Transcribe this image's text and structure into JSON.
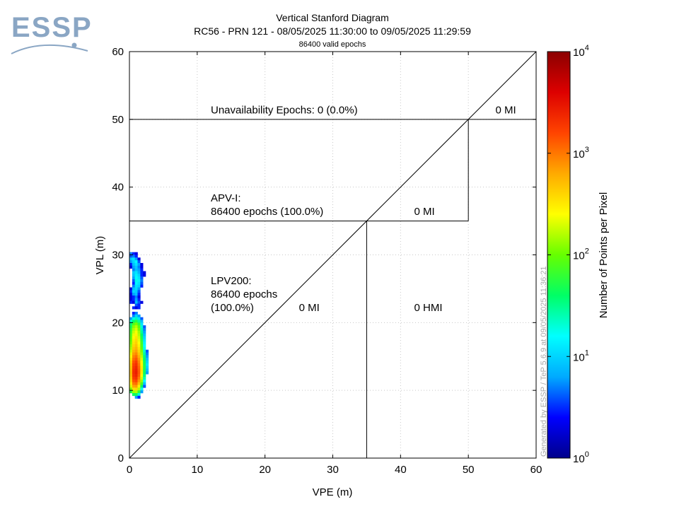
{
  "logo": {
    "text": "ESSP",
    "color": "#8aa6c4"
  },
  "header": {
    "title": "Vertical Stanford Diagram",
    "subtitle": "RC56 - PRN 121 - 08/05/2025 11:30:00 to 09/05/2025 11:29:59",
    "epochs_note": "86400 valid epochs"
  },
  "watermark": "Generated by ESSP / TeP 5.6.9 at 09/05/2025 11:36:21",
  "chart_data": {
    "type": "heatmap",
    "xlabel": "VPE (m)",
    "ylabel": "VPL (m)",
    "xlim": [
      0,
      60
    ],
    "ylim": [
      0,
      60
    ],
    "xticks": [
      0,
      10,
      20,
      30,
      40,
      50,
      60
    ],
    "yticks": [
      0,
      10,
      20,
      30,
      40,
      50,
      60
    ],
    "grid": true,
    "diagonal": true,
    "regions": [
      {
        "name": "LPV200",
        "limit": 35
      },
      {
        "name": "APV-I",
        "limit": 50
      }
    ],
    "annotations": [
      {
        "id": "unavail",
        "text": "Unavailability Epochs: 0 (0.0%)",
        "x": 12,
        "y": 51
      },
      {
        "id": "mi-top",
        "text": "0 MI",
        "x": 54,
        "y": 51
      },
      {
        "id": "apv-title",
        "text": "APV-I:",
        "x": 12,
        "y": 38
      },
      {
        "id": "apv-epochs",
        "text": "86400 epochs (100.0%)",
        "x": 12,
        "y": 36
      },
      {
        "id": "mi-apv",
        "text": "0 MI",
        "x": 42,
        "y": 36
      },
      {
        "id": "lpv-title",
        "text": "LPV200:",
        "x": 12,
        "y": 25.8
      },
      {
        "id": "lpv-epochs",
        "text": "86400 epochs",
        "x": 12,
        "y": 23.8
      },
      {
        "id": "lpv-pct",
        "text": "(100.0%)",
        "x": 12,
        "y": 21.8
      },
      {
        "id": "mi-lpv",
        "text": "0 MI",
        "x": 25,
        "y": 21.8
      },
      {
        "id": "hmi-lpv",
        "text": "0 HMI",
        "x": 42,
        "y": 21.8
      }
    ],
    "colorbar": {
      "label": "Number of Points per Pixel",
      "scale": "log",
      "ticks": [
        {
          "base": "10",
          "exp": "0"
        },
        {
          "base": "10",
          "exp": "1"
        },
        {
          "base": "10",
          "exp": "2"
        },
        {
          "base": "10",
          "exp": "3"
        },
        {
          "base": "10",
          "exp": "4"
        }
      ],
      "colors": [
        "#00008b",
        "#0000ff",
        "#00aaff",
        "#00ffff",
        "#00ff66",
        "#66ff00",
        "#ffff00",
        "#ffaa00",
        "#ff4400",
        "#dd0000",
        "#8b0000"
      ]
    },
    "pixel_size": [
      0.4,
      0.4
    ],
    "pixels": [
      [
        0,
        30,
        5
      ],
      [
        0.4,
        30,
        3
      ],
      [
        0.8,
        30,
        2
      ],
      [
        0,
        29.6,
        4
      ],
      [
        0.4,
        29.6,
        5
      ],
      [
        0.8,
        29.6,
        3
      ],
      [
        0,
        29.2,
        9
      ],
      [
        0.4,
        29.2,
        12
      ],
      [
        0.8,
        29.2,
        6
      ],
      [
        1.2,
        29.2,
        2
      ],
      [
        0,
        28.8,
        6
      ],
      [
        0.4,
        28.8,
        10
      ],
      [
        0.8,
        28.8,
        15
      ],
      [
        1.2,
        28.8,
        4
      ],
      [
        0,
        28.4,
        3
      ],
      [
        0.4,
        28.4,
        8
      ],
      [
        0.8,
        28.4,
        12
      ],
      [
        1.2,
        28.4,
        6
      ],
      [
        1.6,
        28.4,
        2
      ],
      [
        0,
        28,
        2
      ],
      [
        0.4,
        28,
        6
      ],
      [
        0.8,
        28,
        9
      ],
      [
        1.2,
        28,
        5
      ],
      [
        1.6,
        28,
        2
      ],
      [
        0.4,
        27.6,
        5
      ],
      [
        0.8,
        27.6,
        8
      ],
      [
        1.2,
        27.6,
        6
      ],
      [
        1.6,
        27.6,
        3
      ],
      [
        0.4,
        27.2,
        9
      ],
      [
        0.8,
        27.2,
        12
      ],
      [
        1.2,
        27.2,
        7
      ],
      [
        1.6,
        27.2,
        3
      ],
      [
        2.0,
        27.2,
        2
      ],
      [
        0.4,
        26.8,
        8
      ],
      [
        0.8,
        26.8,
        14
      ],
      [
        1.2,
        26.8,
        10
      ],
      [
        1.6,
        26.8,
        3
      ],
      [
        2.0,
        26.8,
        2
      ],
      [
        0.4,
        26.4,
        6
      ],
      [
        0.8,
        26.4,
        16
      ],
      [
        1.2,
        26.4,
        12
      ],
      [
        1.6,
        26.4,
        4
      ],
      [
        0.4,
        26,
        4
      ],
      [
        0.8,
        26,
        18
      ],
      [
        1.2,
        26,
        14
      ],
      [
        1.6,
        26,
        5
      ],
      [
        0.4,
        25.6,
        3
      ],
      [
        0.8,
        25.6,
        15
      ],
      [
        1.2,
        25.6,
        12
      ],
      [
        1.6,
        25.6,
        4
      ],
      [
        0.4,
        25.2,
        5
      ],
      [
        0.8,
        25.2,
        12
      ],
      [
        1.2,
        25.2,
        10
      ],
      [
        1.6,
        25.2,
        3
      ],
      [
        0,
        24.8,
        2
      ],
      [
        0.4,
        24.8,
        8
      ],
      [
        0.8,
        24.8,
        11
      ],
      [
        1.2,
        24.8,
        6
      ],
      [
        0,
        24.4,
        3
      ],
      [
        0.4,
        24.4,
        10
      ],
      [
        0.8,
        24.4,
        9
      ],
      [
        1.2,
        24.4,
        4
      ],
      [
        0,
        24,
        2
      ],
      [
        0.4,
        24,
        6
      ],
      [
        0.8,
        24,
        8
      ],
      [
        1.2,
        24,
        3
      ],
      [
        0,
        23.6,
        2
      ],
      [
        0.4,
        23.6,
        3
      ],
      [
        0.8,
        23.6,
        5
      ],
      [
        1.2,
        23.6,
        2
      ],
      [
        0,
        23.2,
        2
      ],
      [
        0.4,
        23.2,
        3
      ],
      [
        0.8,
        23.2,
        6
      ],
      [
        1.2,
        23.2,
        3
      ],
      [
        0,
        22.8,
        3
      ],
      [
        0.4,
        22.8,
        2
      ],
      [
        0.8,
        22.8,
        8
      ],
      [
        1.2,
        22.8,
        4
      ],
      [
        1.6,
        22.8,
        2
      ],
      [
        0.8,
        22.4,
        4
      ],
      [
        1.2,
        22.4,
        3
      ],
      [
        0.4,
        22,
        3
      ],
      [
        0.8,
        22,
        2
      ],
      [
        1.2,
        22,
        3
      ],
      [
        0.4,
        21.2,
        3
      ],
      [
        0.8,
        21.2,
        5
      ],
      [
        0.4,
        20.8,
        5
      ],
      [
        0.8,
        20.8,
        10
      ],
      [
        1.2,
        20.8,
        6
      ],
      [
        0,
        20.4,
        6
      ],
      [
        0.4,
        20.4,
        18
      ],
      [
        0.8,
        20.4,
        24
      ],
      [
        1.2,
        20.4,
        12
      ],
      [
        1.6,
        20.4,
        4
      ],
      [
        0,
        20,
        20
      ],
      [
        0.4,
        20,
        40
      ],
      [
        0.8,
        20,
        55
      ],
      [
        1.2,
        20,
        30
      ],
      [
        1.6,
        20,
        8
      ],
      [
        0,
        19.6,
        35
      ],
      [
        0.4,
        19.6,
        80
      ],
      [
        0.8,
        19.6,
        110
      ],
      [
        1.2,
        19.6,
        60
      ],
      [
        1.6,
        19.6,
        12
      ],
      [
        0,
        19.2,
        45
      ],
      [
        0.4,
        19.2,
        120
      ],
      [
        0.8,
        19.2,
        160
      ],
      [
        1.2,
        19.2,
        90
      ],
      [
        1.6,
        19.2,
        20
      ],
      [
        2.0,
        19.2,
        4
      ],
      [
        0,
        18.8,
        60
      ],
      [
        0.4,
        18.8,
        150
      ],
      [
        0.8,
        18.8,
        200
      ],
      [
        1.2,
        18.8,
        110
      ],
      [
        1.6,
        18.8,
        25
      ],
      [
        2.0,
        18.8,
        5
      ],
      [
        0,
        18.4,
        70
      ],
      [
        0.4,
        18.4,
        180
      ],
      [
        0.8,
        18.4,
        240
      ],
      [
        1.2,
        18.4,
        140
      ],
      [
        1.6,
        18.4,
        30
      ],
      [
        2.0,
        18.4,
        6
      ],
      [
        0,
        18,
        80
      ],
      [
        0.4,
        18,
        220
      ],
      [
        0.8,
        18,
        280
      ],
      [
        1.2,
        18,
        160
      ],
      [
        1.6,
        18,
        40
      ],
      [
        2.0,
        18,
        8
      ],
      [
        0,
        17.6,
        90
      ],
      [
        0.4,
        17.6,
        260
      ],
      [
        0.8,
        17.6,
        330
      ],
      [
        1.2,
        17.6,
        190
      ],
      [
        1.6,
        17.6,
        50
      ],
      [
        2.0,
        17.6,
        10
      ],
      [
        0,
        17.2,
        100
      ],
      [
        0.4,
        17.2,
        300
      ],
      [
        0.8,
        17.2,
        380
      ],
      [
        1.2,
        17.2,
        220
      ],
      [
        1.6,
        17.2,
        60
      ],
      [
        2.0,
        17.2,
        12
      ],
      [
        0,
        16.8,
        110
      ],
      [
        0.4,
        16.8,
        330
      ],
      [
        0.8,
        16.8,
        420
      ],
      [
        1.2,
        16.8,
        250
      ],
      [
        1.6,
        16.8,
        70
      ],
      [
        2.0,
        16.8,
        14
      ],
      [
        0,
        16.4,
        130
      ],
      [
        0.4,
        16.4,
        380
      ],
      [
        0.8,
        16.4,
        480
      ],
      [
        1.2,
        16.4,
        290
      ],
      [
        1.6,
        16.4,
        80
      ],
      [
        2.0,
        16.4,
        16
      ],
      [
        0,
        16,
        150
      ],
      [
        0.4,
        16,
        450
      ],
      [
        0.8,
        16,
        560
      ],
      [
        1.2,
        16,
        340
      ],
      [
        1.6,
        16,
        90
      ],
      [
        2.0,
        16,
        18
      ],
      [
        0,
        15.6,
        180
      ],
      [
        0.4,
        15.6,
        550
      ],
      [
        0.8,
        15.6,
        680
      ],
      [
        1.2,
        15.6,
        400
      ],
      [
        1.6,
        15.6,
        110
      ],
      [
        2.0,
        15.6,
        22
      ],
      [
        2.4,
        15.6,
        4
      ],
      [
        0,
        15.2,
        220
      ],
      [
        0.4,
        15.2,
        700
      ],
      [
        0.8,
        15.2,
        850
      ],
      [
        1.2,
        15.2,
        480
      ],
      [
        1.6,
        15.2,
        130
      ],
      [
        2.0,
        15.2,
        28
      ],
      [
        2.4,
        15.2,
        5
      ],
      [
        0,
        14.8,
        260
      ],
      [
        0.4,
        14.8,
        900
      ],
      [
        0.8,
        14.8,
        1100
      ],
      [
        1.2,
        14.8,
        600
      ],
      [
        1.6,
        14.8,
        160
      ],
      [
        2.0,
        14.8,
        35
      ],
      [
        2.4,
        14.8,
        6
      ],
      [
        0,
        14.4,
        320
      ],
      [
        0.4,
        14.4,
        1100
      ],
      [
        0.8,
        14.4,
        1400
      ],
      [
        1.2,
        14.4,
        750
      ],
      [
        1.6,
        14.4,
        200
      ],
      [
        2.0,
        14.4,
        40
      ],
      [
        2.4,
        14.4,
        8
      ],
      [
        0,
        14,
        380
      ],
      [
        0.4,
        14,
        1400
      ],
      [
        0.8,
        14,
        1800
      ],
      [
        1.2,
        14,
        900
      ],
      [
        1.6,
        14,
        240
      ],
      [
        2.0,
        14,
        45
      ],
      [
        2.4,
        14,
        10
      ],
      [
        0,
        13.6,
        420
      ],
      [
        0.4,
        13.6,
        1700
      ],
      [
        0.8,
        13.6,
        2100
      ],
      [
        1.2,
        13.6,
        1050
      ],
      [
        1.6,
        13.6,
        270
      ],
      [
        2.0,
        13.6,
        50
      ],
      [
        2.4,
        13.6,
        12
      ],
      [
        0,
        13.2,
        450
      ],
      [
        0.4,
        13.2,
        1900
      ],
      [
        0.8,
        13.2,
        2400
      ],
      [
        1.2,
        13.2,
        1200
      ],
      [
        1.6,
        13.2,
        300
      ],
      [
        2.0,
        13.2,
        55
      ],
      [
        2.4,
        13.2,
        10
      ],
      [
        0,
        12.8,
        480
      ],
      [
        0.4,
        12.8,
        2100
      ],
      [
        0.8,
        12.8,
        2600
      ],
      [
        1.2,
        12.8,
        1300
      ],
      [
        1.6,
        12.8,
        320
      ],
      [
        2.0,
        12.8,
        50
      ],
      [
        2.4,
        12.8,
        8
      ],
      [
        0,
        12.4,
        500
      ],
      [
        0.4,
        12.4,
        2200
      ],
      [
        0.8,
        12.4,
        2700
      ],
      [
        1.2,
        12.4,
        1350
      ],
      [
        1.6,
        12.4,
        300
      ],
      [
        2.0,
        12.4,
        45
      ],
      [
        2.4,
        12.4,
        6
      ],
      [
        0,
        12,
        480
      ],
      [
        0.4,
        12,
        2100
      ],
      [
        0.8,
        12,
        2500
      ],
      [
        1.2,
        12,
        1250
      ],
      [
        1.6,
        12,
        260
      ],
      [
        2.0,
        12,
        35
      ],
      [
        0,
        11.6,
        420
      ],
      [
        0.4,
        11.6,
        1800
      ],
      [
        0.8,
        11.6,
        2100
      ],
      [
        1.2,
        11.6,
        1000
      ],
      [
        1.6,
        11.6,
        200
      ],
      [
        2.0,
        11.6,
        25
      ],
      [
        0,
        11.2,
        360
      ],
      [
        0.4,
        11.2,
        1400
      ],
      [
        0.8,
        11.2,
        1600
      ],
      [
        1.2,
        11.2,
        750
      ],
      [
        1.6,
        11.2,
        140
      ],
      [
        2.0,
        11.2,
        15
      ],
      [
        0,
        10.8,
        280
      ],
      [
        0.4,
        10.8,
        1000
      ],
      [
        0.8,
        10.8,
        1100
      ],
      [
        1.2,
        10.8,
        500
      ],
      [
        1.6,
        10.8,
        80
      ],
      [
        2.0,
        10.8,
        8
      ],
      [
        0,
        10.4,
        200
      ],
      [
        0.4,
        10.4,
        650
      ],
      [
        0.8,
        10.4,
        700
      ],
      [
        1.2,
        10.4,
        300
      ],
      [
        1.6,
        10.4,
        40
      ],
      [
        2.0,
        10.4,
        4
      ],
      [
        0,
        10,
        120
      ],
      [
        0.4,
        10,
        350
      ],
      [
        0.8,
        10,
        380
      ],
      [
        1.2,
        10,
        160
      ],
      [
        1.6,
        10,
        18
      ],
      [
        0,
        9.6,
        50
      ],
      [
        0.4,
        9.6,
        140
      ],
      [
        0.8,
        9.6,
        160
      ],
      [
        1.2,
        9.6,
        60
      ],
      [
        1.6,
        9.6,
        6
      ],
      [
        0.4,
        9.2,
        40
      ],
      [
        0.8,
        9.2,
        50
      ],
      [
        1.2,
        9.2,
        20
      ],
      [
        0.8,
        8.8,
        6
      ],
      [
        1.2,
        8.8,
        3
      ]
    ]
  }
}
